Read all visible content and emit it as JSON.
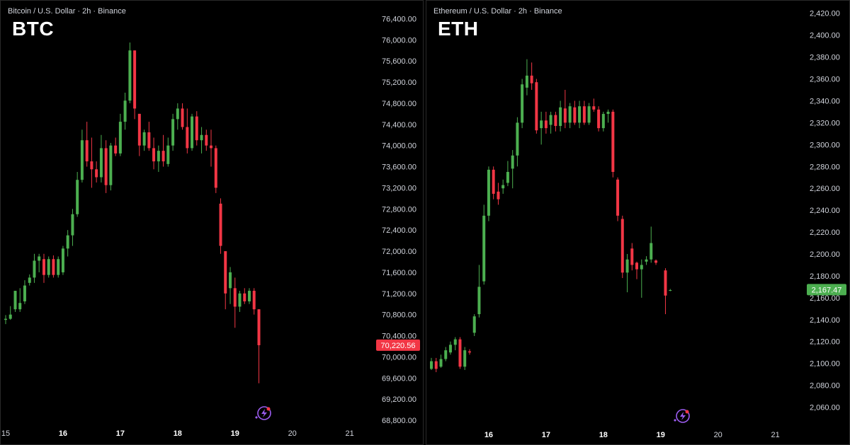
{
  "colors": {
    "up": "#4caf50",
    "down": "#f23645",
    "text": "#d1d4dc",
    "background": "#000000"
  },
  "icons": [
    "lightning-badge-icon"
  ],
  "chart_data": [
    {
      "type": "candlestick",
      "header": "Bitcoin / U.S. Dollar · 2h · Binance",
      "ticker": "BTC",
      "last_price": 70220.56,
      "last_price_label": "70,220.56",
      "last_direction": "down",
      "ylim": [
        68800,
        76500
      ],
      "yticks": [
        76400,
        76000,
        75600,
        75200,
        74800,
        74400,
        74000,
        73600,
        73200,
        72800,
        72400,
        72000,
        71600,
        71200,
        70800,
        70400,
        70000,
        69600,
        69200,
        68800
      ],
      "ytick_labels": [
        "76,400.00",
        "76,000.00",
        "75,600.00",
        "75,200.00",
        "74,800.00",
        "74,400.00",
        "74,000.00",
        "73,600.00",
        "73,200.00",
        "72,800.00",
        "72,400.00",
        "72,000.00",
        "71,600.00",
        "71,200.00",
        "70,800.00",
        "70,400.00",
        "70,000.00",
        "69,600.00",
        "69,200.00",
        "68,800.00"
      ],
      "xlim": [
        15.0,
        21.4
      ],
      "xticks": [
        15,
        16,
        17,
        18,
        19,
        20,
        21
      ],
      "xtick_labels": [
        "15",
        "16",
        "17",
        "18",
        "19",
        "20",
        "21"
      ],
      "bold_xticks": [
        "16",
        "17",
        "18",
        "19"
      ],
      "candles": [
        {
          "t": 15.0,
          "o": 70700,
          "h": 70790,
          "l": 70620,
          "c": 70720
        },
        {
          "t": 15.083,
          "o": 70720,
          "h": 70960,
          "l": 70700,
          "c": 70800
        },
        {
          "t": 15.167,
          "o": 70900,
          "h": 71250,
          "l": 70850,
          "c": 71250
        },
        {
          "t": 15.25,
          "o": 70900,
          "h": 71300,
          "l": 70850,
          "c": 71020
        },
        {
          "t": 15.333,
          "o": 71050,
          "h": 71450,
          "l": 71000,
          "c": 71350
        },
        {
          "t": 15.417,
          "o": 71400,
          "h": 71560,
          "l": 71350,
          "c": 71500
        },
        {
          "t": 15.5,
          "o": 71500,
          "h": 71950,
          "l": 71400,
          "c": 71820
        },
        {
          "t": 15.583,
          "o": 71820,
          "h": 71950,
          "l": 71600,
          "c": 71900
        },
        {
          "t": 15.667,
          "o": 71850,
          "h": 71950,
          "l": 71400,
          "c": 71550
        },
        {
          "t": 15.75,
          "o": 71550,
          "h": 71900,
          "l": 71500,
          "c": 71850
        },
        {
          "t": 15.833,
          "o": 71850,
          "h": 71920,
          "l": 71500,
          "c": 71550
        },
        {
          "t": 15.917,
          "o": 71550,
          "h": 71900,
          "l": 71500,
          "c": 71850
        },
        {
          "t": 16.0,
          "o": 71600,
          "h": 72100,
          "l": 71550,
          "c": 72050
        },
        {
          "t": 16.083,
          "o": 72050,
          "h": 72400,
          "l": 71900,
          "c": 72300
        },
        {
          "t": 16.167,
          "o": 72300,
          "h": 72800,
          "l": 72100,
          "c": 72700
        },
        {
          "t": 16.25,
          "o": 72700,
          "h": 73500,
          "l": 72650,
          "c": 73350
        },
        {
          "t": 16.333,
          "o": 73350,
          "h": 74300,
          "l": 73300,
          "c": 74100
        },
        {
          "t": 16.417,
          "o": 74100,
          "h": 74450,
          "l": 73600,
          "c": 73700
        },
        {
          "t": 16.5,
          "o": 73700,
          "h": 74150,
          "l": 73200,
          "c": 73550
        },
        {
          "t": 16.583,
          "o": 73550,
          "h": 73700,
          "l": 73300,
          "c": 73400
        },
        {
          "t": 16.667,
          "o": 73400,
          "h": 74200,
          "l": 73300,
          "c": 73950
        },
        {
          "t": 16.75,
          "o": 73950,
          "h": 74100,
          "l": 73100,
          "c": 73250
        },
        {
          "t": 16.833,
          "o": 73250,
          "h": 74050,
          "l": 73150,
          "c": 74000
        },
        {
          "t": 16.917,
          "o": 74000,
          "h": 74150,
          "l": 73800,
          "c": 73850
        },
        {
          "t": 17.0,
          "o": 73850,
          "h": 74600,
          "l": 73800,
          "c": 74450
        },
        {
          "t": 17.083,
          "o": 74450,
          "h": 75000,
          "l": 74300,
          "c": 74850
        },
        {
          "t": 17.167,
          "o": 74850,
          "h": 75950,
          "l": 74800,
          "c": 75800
        },
        {
          "t": 17.25,
          "o": 75800,
          "h": 75800,
          "l": 74500,
          "c": 74700
        },
        {
          "t": 17.333,
          "o": 74600,
          "h": 74600,
          "l": 73800,
          "c": 74000
        },
        {
          "t": 17.417,
          "o": 74000,
          "h": 74300,
          "l": 73900,
          "c": 74250
        },
        {
          "t": 17.5,
          "o": 74250,
          "h": 74450,
          "l": 73900,
          "c": 73950
        },
        {
          "t": 17.583,
          "o": 73950,
          "h": 74150,
          "l": 73550,
          "c": 73700
        },
        {
          "t": 17.667,
          "o": 73700,
          "h": 74000,
          "l": 73500,
          "c": 73900
        },
        {
          "t": 17.75,
          "o": 73900,
          "h": 74200,
          "l": 73600,
          "c": 73700
        },
        {
          "t": 17.833,
          "o": 73650,
          "h": 74150,
          "l": 73600,
          "c": 74000
        },
        {
          "t": 17.917,
          "o": 74000,
          "h": 74600,
          "l": 73900,
          "c": 74500
        },
        {
          "t": 18.0,
          "o": 74500,
          "h": 74800,
          "l": 74300,
          "c": 74700
        },
        {
          "t": 18.083,
          "o": 74700,
          "h": 74800,
          "l": 74300,
          "c": 74350
        },
        {
          "t": 18.167,
          "o": 74350,
          "h": 74700,
          "l": 73850,
          "c": 73950
        },
        {
          "t": 18.25,
          "o": 73950,
          "h": 74600,
          "l": 73900,
          "c": 74550
        },
        {
          "t": 18.333,
          "o": 74550,
          "h": 74650,
          "l": 74000,
          "c": 74100
        },
        {
          "t": 18.417,
          "o": 74100,
          "h": 74350,
          "l": 73850,
          "c": 74200
        },
        {
          "t": 18.5,
          "o": 74200,
          "h": 74300,
          "l": 73900,
          "c": 74000
        },
        {
          "t": 18.583,
          "o": 74000,
          "h": 74300,
          "l": 73600,
          "c": 73950
        },
        {
          "t": 18.667,
          "o": 73950,
          "h": 74000,
          "l": 73100,
          "c": 73200
        },
        {
          "t": 18.75,
          "o": 72900,
          "h": 73000,
          "l": 71950,
          "c": 72100
        },
        {
          "t": 18.833,
          "o": 72000,
          "h": 72000,
          "l": 70900,
          "c": 71200
        },
        {
          "t": 18.917,
          "o": 71300,
          "h": 71700,
          "l": 71000,
          "c": 71600
        },
        {
          "t": 19.0,
          "o": 71300,
          "h": 71500,
          "l": 70550,
          "c": 70950
        },
        {
          "t": 19.083,
          "o": 70950,
          "h": 71250,
          "l": 70850,
          "c": 71200
        },
        {
          "t": 19.167,
          "o": 71200,
          "h": 71300,
          "l": 71000,
          "c": 71050
        },
        {
          "t": 19.25,
          "o": 71050,
          "h": 71300,
          "l": 71000,
          "c": 71250
        },
        {
          "t": 19.333,
          "o": 71250,
          "h": 71300,
          "l": 70800,
          "c": 70900
        },
        {
          "t": 19.417,
          "o": 70900,
          "h": 70900,
          "l": 69500,
          "c": 70220
        }
      ]
    },
    {
      "type": "candlestick",
      "header": "Ethereum / U.S. Dollar · 2h · Binance",
      "ticker": "ETH",
      "last_price": 2167.47,
      "last_price_label": "2,167.47",
      "last_direction": "up",
      "ylim": [
        2050,
        2425
      ],
      "yticks": [
        2420,
        2400,
        2380,
        2360,
        2340,
        2320,
        2300,
        2280,
        2260,
        2240,
        2220,
        2200,
        2180,
        2160,
        2140,
        2120,
        2100,
        2080,
        2060
      ],
      "ytick_labels": [
        "2,420.00",
        "2,400.00",
        "2,380.00",
        "2,360.00",
        "2,340.00",
        "2,320.00",
        "2,300.00",
        "2,280.00",
        "2,260.00",
        "2,240.00",
        "2,220.00",
        "2,200.00",
        "2,180.00",
        "2,160.00",
        "2,140.00",
        "2,120.00",
        "2,100.00",
        "2,080.00",
        "2,060.00"
      ],
      "xlim": [
        15.0,
        21.4
      ],
      "xticks": [
        16,
        17,
        18,
        19,
        20,
        21
      ],
      "xtick_labels": [
        "16",
        "17",
        "18",
        "19",
        "20",
        "21"
      ],
      "bold_xticks": [
        "16",
        "17",
        "18",
        "19"
      ],
      "candles": [
        {
          "t": 15.0,
          "o": 2095,
          "h": 2105,
          "l": 2094,
          "c": 2102
        },
        {
          "t": 15.083,
          "o": 2102,
          "h": 2105,
          "l": 2092,
          "c": 2095
        },
        {
          "t": 15.167,
          "o": 2097,
          "h": 2108,
          "l": 2096,
          "c": 2104
        },
        {
          "t": 15.25,
          "o": 2104,
          "h": 2115,
          "l": 2102,
          "c": 2112
        },
        {
          "t": 15.333,
          "o": 2110,
          "h": 2120,
          "l": 2108,
          "c": 2117
        },
        {
          "t": 15.417,
          "o": 2117,
          "h": 2124,
          "l": 2112,
          "c": 2122
        },
        {
          "t": 15.5,
          "o": 2122,
          "h": 2124,
          "l": 2095,
          "c": 2097
        },
        {
          "t": 15.583,
          "o": 2097,
          "h": 2115,
          "l": 2094,
          "c": 2112
        },
        {
          "t": 15.667,
          "o": 2111,
          "h": 2113,
          "l": 2108,
          "c": 2110
        },
        {
          "t": 15.75,
          "o": 2128,
          "h": 2145,
          "l": 2125,
          "c": 2143
        },
        {
          "t": 15.833,
          "o": 2145,
          "h": 2190,
          "l": 2142,
          "c": 2170
        },
        {
          "t": 15.917,
          "o": 2175,
          "h": 2245,
          "l": 2172,
          "c": 2235
        },
        {
          "t": 16.0,
          "o": 2235,
          "h": 2280,
          "l": 2230,
          "c": 2277
        },
        {
          "t": 16.083,
          "o": 2277,
          "h": 2280,
          "l": 2250,
          "c": 2255
        },
        {
          "t": 16.167,
          "o": 2257,
          "h": 2265,
          "l": 2245,
          "c": 2250
        },
        {
          "t": 16.25,
          "o": 2260,
          "h": 2268,
          "l": 2255,
          "c": 2263
        },
        {
          "t": 16.333,
          "o": 2265,
          "h": 2285,
          "l": 2262,
          "c": 2275
        },
        {
          "t": 16.417,
          "o": 2278,
          "h": 2295,
          "l": 2260,
          "c": 2290
        },
        {
          "t": 16.5,
          "o": 2290,
          "h": 2325,
          "l": 2280,
          "c": 2320
        },
        {
          "t": 16.583,
          "o": 2320,
          "h": 2360,
          "l": 2315,
          "c": 2355
        },
        {
          "t": 16.667,
          "o": 2352,
          "h": 2378,
          "l": 2345,
          "c": 2363
        },
        {
          "t": 16.75,
          "o": 2363,
          "h": 2375,
          "l": 2350,
          "c": 2356
        },
        {
          "t": 16.833,
          "o": 2357,
          "h": 2360,
          "l": 2310,
          "c": 2313
        },
        {
          "t": 16.917,
          "o": 2315,
          "h": 2330,
          "l": 2300,
          "c": 2322
        },
        {
          "t": 17.0,
          "o": 2322,
          "h": 2330,
          "l": 2310,
          "c": 2315
        },
        {
          "t": 17.083,
          "o": 2318,
          "h": 2330,
          "l": 2310,
          "c": 2327
        },
        {
          "t": 17.167,
          "o": 2327,
          "h": 2330,
          "l": 2312,
          "c": 2317
        },
        {
          "t": 17.25,
          "o": 2317,
          "h": 2340,
          "l": 2312,
          "c": 2334
        },
        {
          "t": 17.333,
          "o": 2333,
          "h": 2350,
          "l": 2315,
          "c": 2320
        },
        {
          "t": 17.417,
          "o": 2320,
          "h": 2338,
          "l": 2315,
          "c": 2335
        },
        {
          "t": 17.5,
          "o": 2334,
          "h": 2340,
          "l": 2318,
          "c": 2320
        },
        {
          "t": 17.583,
          "o": 2320,
          "h": 2340,
          "l": 2315,
          "c": 2335
        },
        {
          "t": 17.667,
          "o": 2335,
          "h": 2340,
          "l": 2318,
          "c": 2320
        },
        {
          "t": 17.75,
          "o": 2320,
          "h": 2338,
          "l": 2318,
          "c": 2335
        },
        {
          "t": 17.833,
          "o": 2335,
          "h": 2342,
          "l": 2330,
          "c": 2332
        },
        {
          "t": 17.917,
          "o": 2332,
          "h": 2335,
          "l": 2312,
          "c": 2315
        },
        {
          "t": 18.0,
          "o": 2315,
          "h": 2330,
          "l": 2312,
          "c": 2328
        },
        {
          "t": 18.083,
          "o": 2328,
          "h": 2332,
          "l": 2320,
          "c": 2330
        },
        {
          "t": 18.167,
          "o": 2330,
          "h": 2332,
          "l": 2270,
          "c": 2275
        },
        {
          "t": 18.25,
          "o": 2268,
          "h": 2270,
          "l": 2230,
          "c": 2235
        },
        {
          "t": 18.333,
          "o": 2232,
          "h": 2235,
          "l": 2178,
          "c": 2183
        },
        {
          "t": 18.417,
          "o": 2183,
          "h": 2200,
          "l": 2165,
          "c": 2195
        },
        {
          "t": 18.5,
          "o": 2205,
          "h": 2210,
          "l": 2185,
          "c": 2190
        },
        {
          "t": 18.583,
          "o": 2192,
          "h": 2193,
          "l": 2177,
          "c": 2186
        },
        {
          "t": 18.667,
          "o": 2186,
          "h": 2195,
          "l": 2160,
          "c": 2190
        },
        {
          "t": 18.75,
          "o": 2193,
          "h": 2198,
          "l": 2190,
          "c": 2195
        },
        {
          "t": 18.833,
          "o": 2195,
          "h": 2225,
          "l": 2192,
          "c": 2210
        },
        {
          "t": 18.917,
          "o": 2194,
          "h": 2195,
          "l": 2190,
          "c": 2192
        },
        {
          "t": 19.083,
          "o": 2185,
          "h": 2187,
          "l": 2145,
          "c": 2162
        },
        {
          "t": 19.167,
          "o": 2167,
          "h": 2168,
          "l": 2166,
          "c": 2167
        }
      ]
    }
  ]
}
